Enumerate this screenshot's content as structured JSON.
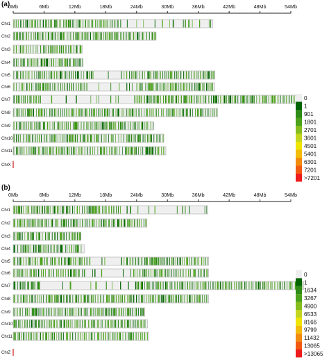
{
  "chart_data": [
    {
      "type": "heatmap",
      "panel_label": "(a)",
      "axis_ticks": [
        "0Mb",
        "6Mb",
        "12Mb",
        "18Mb",
        "24Mb",
        "30Mb",
        "36Mb",
        "42Mb",
        "48Mb",
        "54Mb"
      ],
      "axis_tick_values_mb": [
        0,
        6,
        12,
        18,
        24,
        30,
        36,
        42,
        48,
        54
      ],
      "xlim_mb": [
        0,
        54
      ],
      "chromosomes": [
        {
          "name": "Chr1",
          "length_mb": 38.8
        },
        {
          "name": "Chr2",
          "length_mb": 27.8
        },
        {
          "name": "Chr3",
          "length_mb": 13.4
        },
        {
          "name": "Chr4",
          "length_mb": 13.6
        },
        {
          "name": "Chr5",
          "length_mb": 39.2
        },
        {
          "name": "Chr6",
          "length_mb": 39.2
        },
        {
          "name": "Chr7",
          "length_mb": 55.9
        },
        {
          "name": "Chr8",
          "length_mb": 39.8
        },
        {
          "name": "Chr9",
          "length_mb": 27.3
        },
        {
          "name": "Chr10",
          "length_mb": 29.3
        },
        {
          "name": "Chr11",
          "length_mb": 29.7
        },
        {
          "name": "ChrX",
          "length_mb": 0.4
        }
      ],
      "legend": {
        "labels": [
          "0",
          "1",
          "901",
          "1801",
          "2701",
          "3601",
          "4501",
          "5401",
          "6301",
          "7201",
          ">7201"
        ],
        "colors": [
          "#eeeeee",
          "#006400",
          "#2e8b16",
          "#4ca21a",
          "#86bd1e",
          "#c3d51e",
          "#f0e500",
          "#f3bc0a",
          "#f28c0e",
          "#f25a12",
          "#ee1c1c"
        ]
      }
    },
    {
      "type": "heatmap",
      "panel_label": "(b)",
      "axis_ticks": [
        "0Mb",
        "6Mb",
        "12Mb",
        "18Mb",
        "24Mb",
        "30Mb",
        "36Mb",
        "42Mb",
        "48Mb",
        "54Mb"
      ],
      "axis_tick_values_mb": [
        0,
        6,
        12,
        18,
        24,
        30,
        36,
        42,
        48,
        54
      ],
      "xlim_mb": [
        0,
        54
      ],
      "chromosomes": [
        {
          "name": "Chr1",
          "length_mb": 37.9
        },
        {
          "name": "Chr2",
          "length_mb": 26.0
        },
        {
          "name": "Chr3",
          "length_mb": 13.2
        },
        {
          "name": "Chr4",
          "length_mb": 13.8
        },
        {
          "name": "Chr5",
          "length_mb": 38.0
        },
        {
          "name": "Chr6",
          "length_mb": 38.0
        },
        {
          "name": "Chr7",
          "length_mb": 56.5
        },
        {
          "name": "Chr8",
          "length_mb": 38.0
        },
        {
          "name": "Chr9",
          "length_mb": 25.6
        },
        {
          "name": "Chr10",
          "length_mb": 26.1
        },
        {
          "name": "Chr11",
          "length_mb": 26.4
        },
        {
          "name": "ChrZ",
          "length_mb": 0.4
        }
      ],
      "legend": {
        "labels": [
          "0",
          "1",
          "1634",
          "3267",
          "4900",
          "6533",
          "8166",
          "9799",
          "11432",
          "13065",
          ">13065"
        ],
        "colors": [
          "#eeeeee",
          "#006400",
          "#2e8b16",
          "#4ca21a",
          "#86bd1e",
          "#c3d51e",
          "#f0e500",
          "#f3bc0a",
          "#f28c0e",
          "#f25a12",
          "#ee1c1c"
        ]
      }
    }
  ]
}
